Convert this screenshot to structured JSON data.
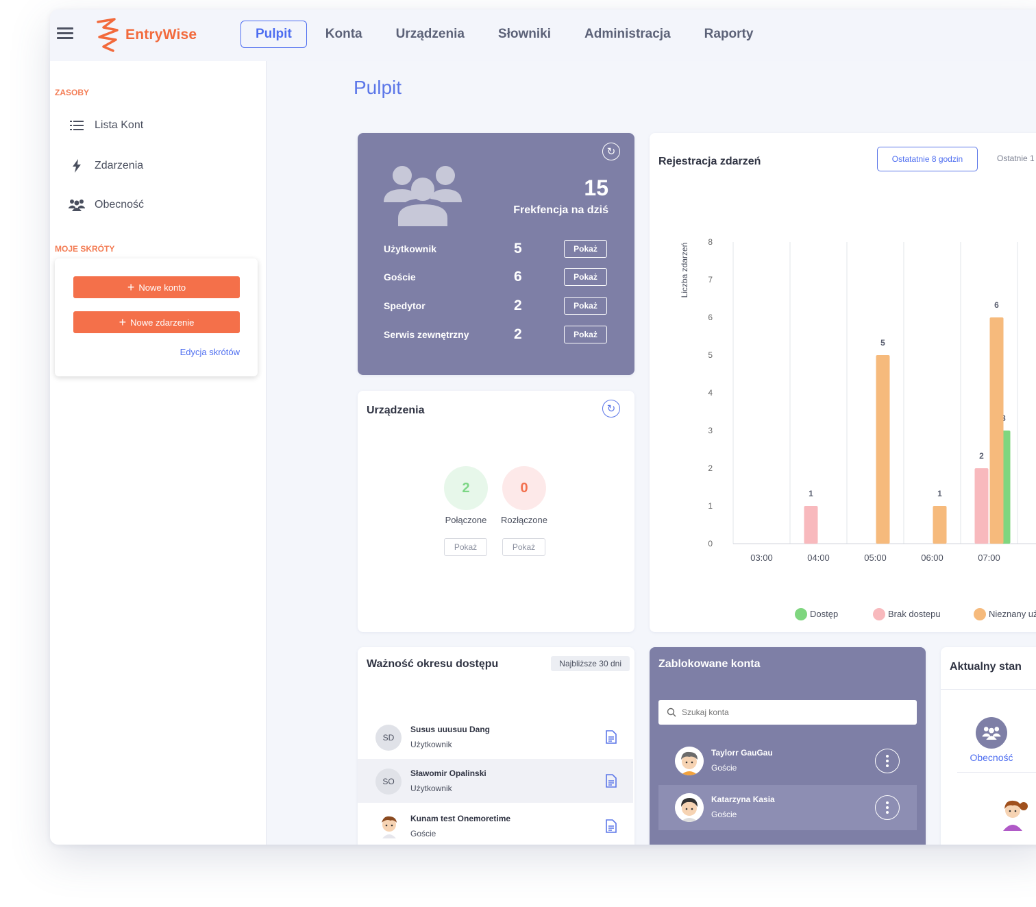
{
  "app": {
    "logo_text": "EntryWise",
    "brand_color": "#f26a3c",
    "accent_color": "#4d6df0"
  },
  "nav": {
    "items": [
      "Pulpit",
      "Konta",
      "Urządzenia",
      "Słowniki",
      "Administracja",
      "Raporty"
    ],
    "active": "Pulpit"
  },
  "sidebar": {
    "resources_label": "ZASOBY",
    "items": [
      {
        "label": "Lista Kont",
        "icon": "list-icon"
      },
      {
        "label": "Zdarzenia",
        "icon": "bolt-icon"
      },
      {
        "label": "Obecność",
        "icon": "users-icon"
      }
    ],
    "shortcuts_label": "MOJE SKRÓTY",
    "shortcut_buttons": [
      "Nowe konto",
      "Nowe zdarzenie"
    ],
    "edit_shortcuts": "Edycja skrótów"
  },
  "page": {
    "title": "Pulpit"
  },
  "attendance": {
    "total": "15",
    "label": "Frekfencja na dziś",
    "rows": [
      {
        "label": "Użytkownik",
        "value": "5",
        "button": "Pokaż"
      },
      {
        "label": "Goście",
        "value": "6",
        "button": "Pokaż"
      },
      {
        "label": "Spedytor",
        "value": "2",
        "button": "Pokaż"
      },
      {
        "label": "Serwis zewnętrzny",
        "value": "2",
        "button": "Pokaż"
      }
    ]
  },
  "devices": {
    "title": "Urządzenia",
    "connected_value": "2",
    "connected_label": "Połączone",
    "disconnected_value": "0",
    "disconnected_label": "Rozłączone",
    "button": "Pokaż"
  },
  "events": {
    "title": "Rejestracja zdarzeń",
    "range_active": "Ostatatnie 8 godzin",
    "range_other": "Ostatnie 1"
  },
  "chart_data": {
    "type": "bar",
    "ylabel": "Liczba zdarzeń",
    "ylim": [
      0,
      8
    ],
    "y_ticks": [
      0,
      1,
      2,
      3,
      4,
      5,
      6,
      7,
      8
    ],
    "categories": [
      "03:00",
      "04:00",
      "05:00",
      "06:00",
      "07:00"
    ],
    "grid": "vertical",
    "legend_placement": "bottom",
    "series": [
      {
        "name": "Dostęp",
        "color": "#7fd67f",
        "values": [
          0,
          0,
          0,
          0,
          3
        ]
      },
      {
        "name": "Brak dostepu",
        "color": "#f8b9bd",
        "values": [
          0,
          1,
          0,
          0,
          2
        ]
      },
      {
        "name": "Nieznany uż",
        "color": "#f6ba7c",
        "values": [
          0,
          0,
          5,
          1,
          6
        ]
      }
    ]
  },
  "validity": {
    "title": "Ważność okresu dostępu",
    "badge": "Najbliższe 30 dni",
    "people": [
      {
        "initials": "SD",
        "name": "Susus uuusuu Dang",
        "role": "Użytkownik"
      },
      {
        "initials": "SO",
        "name": "Sławomir Opalinski",
        "role": "Użytkownik"
      },
      {
        "initials": "",
        "name": "Kunam test Onemoretime",
        "role": "Goście"
      }
    ]
  },
  "blocked": {
    "title": "Zablokowane konta",
    "search_placeholder": "Szukaj konta",
    "people": [
      {
        "name": "Taylorr GauGau",
        "role": "Goście"
      },
      {
        "name": "Katarzyna Kasia",
        "role": "Goście"
      }
    ]
  },
  "state": {
    "title": "Aktualny stan",
    "tile_label": "Obecność"
  }
}
